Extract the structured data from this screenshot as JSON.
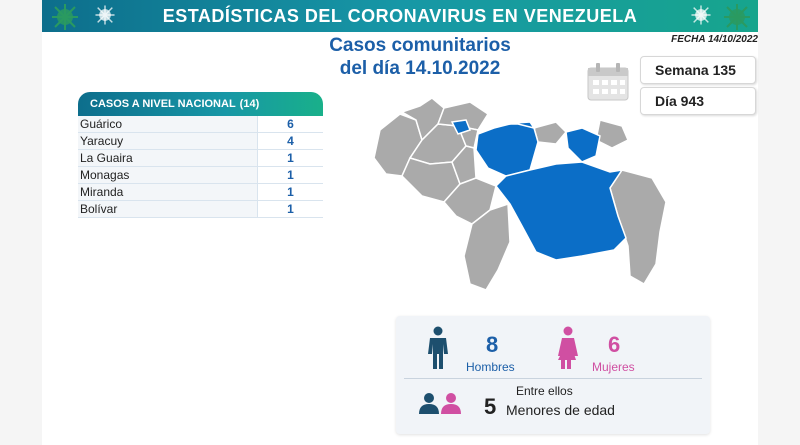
{
  "header": {
    "title": "ESTADÍSTICAS DEL CORONAVIRUS EN VENEZUELA",
    "subtitle_line1": "Casos comunitarios",
    "subtitle_line2": "del día 14.10.2022",
    "fecha": "FECHA 14/10/2022",
    "semana": "Semana 135",
    "dia": "Día 943"
  },
  "table": {
    "heading": "CASOS A NIVEL NACIONAL",
    "total": "(14)",
    "rows": [
      {
        "state": "Guárico",
        "count": "6"
      },
      {
        "state": "Yaracuy",
        "count": "4"
      },
      {
        "state": "La Guaira",
        "count": "1"
      },
      {
        "state": "Monagas",
        "count": "1"
      },
      {
        "state": "Miranda",
        "count": "1"
      },
      {
        "state": "Bolívar",
        "count": "1"
      }
    ]
  },
  "stats": {
    "hombres_count": "8",
    "hombres_label": "Hombres",
    "mujeres_count": "6",
    "mujeres_label": "Mujeres",
    "entre_ellos": "Entre ellos",
    "menores_count": "5",
    "menores_label": "Menores de edad"
  },
  "colors": {
    "brand_blue": "#1c5fa8",
    "map_highlight": "#0b6ec7",
    "map_gray": "#a9a9a9",
    "male": "#1d4f6e",
    "female": "#d04fa2"
  },
  "icons": [
    "virus-icon",
    "calendar-icon",
    "male-person-icon",
    "female-person-icon",
    "family-icon"
  ]
}
